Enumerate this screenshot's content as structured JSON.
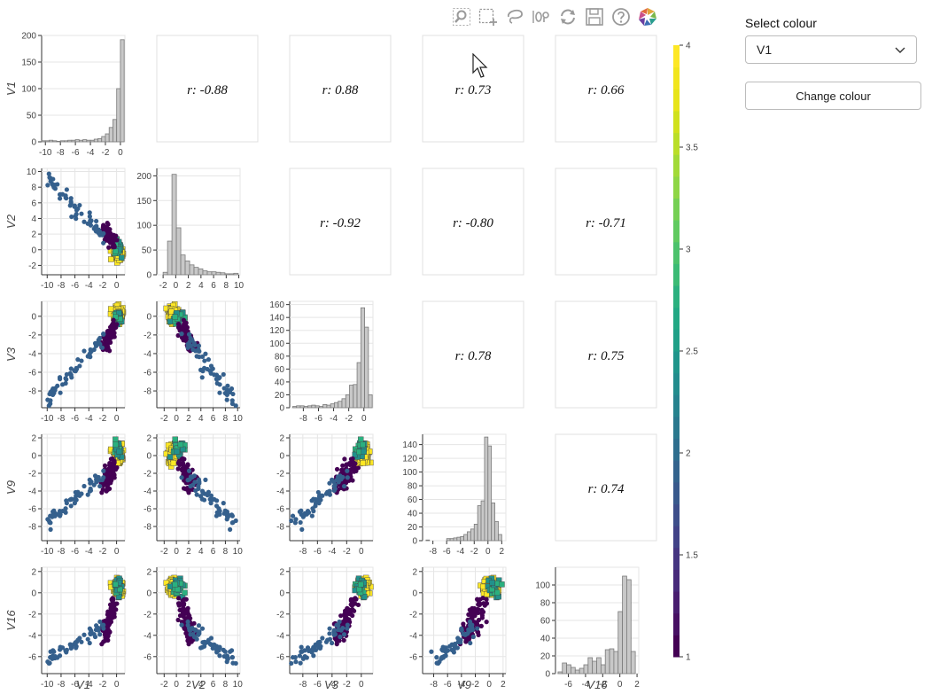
{
  "toolbar": {
    "tools": [
      {
        "name": "box-zoom-tool",
        "icon": "magnifier-box-icon"
      },
      {
        "name": "box-select-tool",
        "icon": "box-select-icon"
      },
      {
        "name": "lasso-select-tool",
        "icon": "lasso-icon"
      },
      {
        "name": "hover-tool",
        "icon": "hover-tooltip-icon"
      },
      {
        "name": "reset-tool",
        "icon": "reset-icon"
      },
      {
        "name": "save-tool",
        "icon": "save-icon"
      },
      {
        "name": "help-tool",
        "icon": "help-icon"
      },
      {
        "name": "bokeh-logo",
        "icon": "bokeh-logo-icon"
      }
    ]
  },
  "panel": {
    "select_label": "Select colour",
    "selected_value": "V1",
    "button_label": "Change colour"
  },
  "chart_data": {
    "type": "scatter-matrix",
    "variables": [
      "V1",
      "V2",
      "V3",
      "V9",
      "V16"
    ],
    "correlation_prefix": "r: ",
    "correlations": {
      "V1-V2": "-0.88",
      "V1-V3": "0.88",
      "V1-V9": "0.73",
      "V1-V16": "0.66",
      "V2-V3": "-0.92",
      "V2-V9": "-0.80",
      "V2-V16": "-0.71",
      "V3-V9": "0.78",
      "V3-V16": "0.75",
      "V9-V16": "0.74"
    },
    "axis_ticks": {
      "V1": [
        "-10",
        "-8",
        "-6",
        "-4",
        "-2",
        "0"
      ],
      "V2": [
        "-2",
        "0",
        "2",
        "4",
        "6",
        "8",
        "10"
      ],
      "V3": [
        "-8",
        "-6",
        "-4",
        "-2",
        "0"
      ],
      "V9": [
        "-8",
        "-6",
        "-4",
        "-2",
        "0",
        "2"
      ],
      "V16": [
        "-6",
        "-4",
        "-2",
        "0",
        "2"
      ]
    },
    "row_y_ticks": {
      "V2": [
        "-2",
        "0",
        "2",
        "4",
        "6",
        "8",
        "10"
      ],
      "V3": [
        "-8",
        "-6",
        "-4",
        "-2",
        "0"
      ],
      "V9": [
        "-8",
        "-6",
        "-4",
        "-2",
        "0",
        "2"
      ],
      "V16": [
        "-6",
        "-4",
        "-2",
        "0",
        "2"
      ]
    },
    "histograms": {
      "V1": {
        "x_range": [
          -10.5,
          0.6
        ],
        "y_range": [
          0,
          200
        ],
        "y_ticks": [
          "0",
          "50",
          "100",
          "150",
          "200"
        ],
        "bin_edges": [
          -10.5,
          -10.0,
          -9.5,
          -9.0,
          -8.5,
          -8.0,
          -7.5,
          -7.0,
          -6.5,
          -6.0,
          -5.5,
          -5.0,
          -4.5,
          -4.0,
          -3.5,
          -3.0,
          -2.5,
          -2.0,
          -1.5,
          -1.0,
          -0.5,
          0.0,
          0.5
        ],
        "counts": [
          2,
          2,
          3,
          2,
          1,
          2,
          2,
          3,
          3,
          4,
          3,
          4,
          3,
          3,
          5,
          6,
          10,
          15,
          27,
          42,
          100,
          192
        ]
      },
      "V2": {
        "x_range": [
          -3,
          10.2
        ],
        "y_range": [
          0,
          215
        ],
        "y_ticks": [
          "0",
          "50",
          "100",
          "150",
          "200"
        ],
        "bin_edges": [
          -2.0,
          -1.3,
          -0.6,
          0.1,
          0.8,
          1.5,
          2.2,
          2.9,
          3.6,
          4.3,
          5.0,
          5.7,
          6.4,
          7.1,
          7.8,
          8.5,
          9.2,
          9.9
        ],
        "counts": [
          5,
          68,
          203,
          95,
          40,
          28,
          20,
          15,
          12,
          8,
          6,
          6,
          5,
          4,
          2,
          2,
          3
        ]
      },
      "V3": {
        "x_range": [
          -9.8,
          1.2
        ],
        "y_range": [
          0,
          165
        ],
        "y_ticks": [
          "0",
          "20",
          "40",
          "60",
          "80",
          "100",
          "120",
          "140",
          "160"
        ],
        "bin_edges": [
          -9.4,
          -8.9,
          -8.4,
          -7.9,
          -7.4,
          -6.9,
          -6.4,
          -5.9,
          -5.4,
          -4.9,
          -4.4,
          -3.9,
          -3.4,
          -2.9,
          -2.4,
          -1.9,
          -1.4,
          -0.9,
          -0.4,
          0.1,
          0.6,
          1.1
        ],
        "counts": [
          2,
          3,
          3,
          2,
          3,
          4,
          3,
          2,
          5,
          4,
          6,
          8,
          10,
          14,
          20,
          35,
          36,
          70,
          155,
          125,
          20
        ]
      },
      "V9": {
        "x_range": [
          -9.5,
          2.6
        ],
        "y_range": [
          0,
          155
        ],
        "y_ticks": [
          "0",
          "20",
          "40",
          "60",
          "80",
          "100",
          "120",
          "140"
        ],
        "bin_edges": [
          -9.0,
          -8.5,
          -8.0,
          -7.5,
          -7.0,
          -6.5,
          -6.0,
          -5.5,
          -5.0,
          -4.5,
          -4.0,
          -3.5,
          -3.0,
          -2.5,
          -2.0,
          -1.5,
          -1.0,
          -0.5,
          0.0,
          0.5,
          1.0,
          1.5,
          2.0
        ],
        "counts": [
          1,
          0,
          0,
          0,
          0,
          0,
          3,
          3,
          4,
          5,
          6,
          9,
          13,
          17,
          24,
          51,
          58,
          151,
          138,
          55,
          28,
          9
        ]
      },
      "V16": {
        "x_range": [
          -7.5,
          2.2
        ],
        "y_range": [
          0,
          120
        ],
        "y_ticks": [
          "0",
          "20",
          "40",
          "60",
          "80",
          "100"
        ],
        "bin_edges": [
          -7.2,
          -6.7,
          -6.2,
          -5.7,
          -5.2,
          -4.7,
          -4.2,
          -3.7,
          -3.2,
          -2.7,
          -2.2,
          -1.7,
          -1.2,
          -0.7,
          -0.2,
          0.3,
          0.8,
          1.3,
          1.8
        ],
        "counts": [
          2,
          12,
          10,
          7,
          4,
          6,
          10,
          18,
          14,
          18,
          10,
          27,
          28,
          25,
          70,
          110,
          106,
          25
        ]
      }
    },
    "ranges": {
      "V1": [
        -10.8,
        1.2
      ],
      "V2": [
        -3.2,
        10.4
      ],
      "V3": [
        -9.8,
        1.6
      ],
      "V9": [
        -9.6,
        2.4
      ],
      "V16": [
        -7.6,
        2.4
      ]
    },
    "colorbar": {
      "min": 1,
      "max": 4,
      "ticks": [
        "1",
        "1.5",
        "2",
        "2.5",
        "3",
        "3.5",
        "4"
      ],
      "palette": "viridis",
      "steps": 28
    },
    "point_colors": {
      "purple": "#440154",
      "blue": "#35608d",
      "green": "#21918c",
      "teal": "#2ab07f",
      "yellow": "#fde725"
    },
    "panel_background_lines": "#e5e5e5",
    "hist_fill": "#c8c8c8",
    "hist_stroke": "#7a7a7a"
  }
}
